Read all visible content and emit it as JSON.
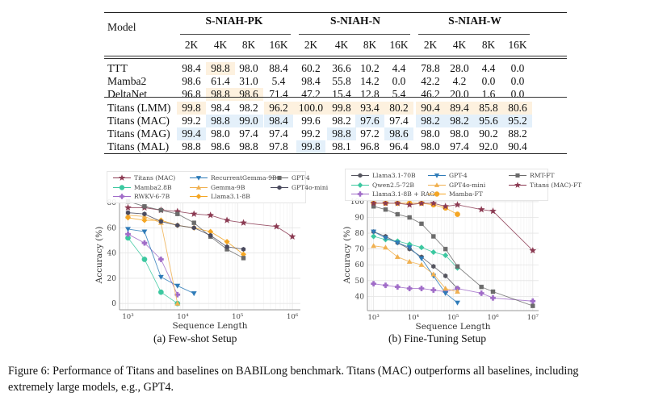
{
  "table": {
    "model_header": "Model",
    "groups": [
      "S-NIAH-PK",
      "S-NIAH-N",
      "S-NIAH-W"
    ],
    "subheaders": [
      "2K",
      "4K",
      "8K",
      "16K",
      "2K",
      "4K",
      "8K",
      "16K",
      "2K",
      "4K",
      "8K",
      "16K"
    ],
    "highlight_colors": {
      "orange": "#fdf1df",
      "blue": "#e4f0fa"
    },
    "rows": [
      {
        "model": "TTT",
        "values": [
          "98.4",
          "98.8",
          "98.0",
          "88.4",
          "60.2",
          "36.6",
          "10.2",
          "4.4",
          "78.8",
          "28.0",
          "4.4",
          "0.0"
        ],
        "highlight": [
          "",
          "o",
          "",
          "",
          "",
          "",
          "",
          "",
          "",
          "",
          "",
          ""
        ]
      },
      {
        "model": "Mamba2",
        "values": [
          "98.6",
          "61.4",
          "31.0",
          "5.4",
          "98.4",
          "55.8",
          "14.2",
          "0.0",
          "42.2",
          "4.2",
          "0.0",
          "0.0"
        ],
        "highlight": [
          "",
          "",
          "",
          "",
          "",
          "",
          "",
          "",
          "",
          "",
          "",
          ""
        ]
      },
      {
        "model": "DeltaNet",
        "values": [
          "96.8",
          "98.8",
          "98.6",
          "71.4",
          "47.2",
          "15.4",
          "12.8",
          "5.4",
          "46.2",
          "20.0",
          "1.6",
          "0.0"
        ],
        "highlight": [
          "",
          "o",
          "o",
          "",
          "",
          "",
          "",
          "",
          "",
          "",
          "",
          ""
        ]
      },
      {
        "model": "Titans (LMM)",
        "values": [
          "99.8",
          "98.4",
          "98.2",
          "96.2",
          "100.0",
          "99.8",
          "93.4",
          "80.2",
          "90.4",
          "89.4",
          "85.8",
          "80.6"
        ],
        "highlight": [
          "o",
          "",
          "",
          "o",
          "o",
          "o",
          "o",
          "o",
          "o",
          "o",
          "o",
          "o"
        ]
      },
      {
        "model": "Titans (MAC)",
        "values": [
          "99.2",
          "98.8",
          "99.0",
          "98.4",
          "99.6",
          "98.2",
          "97.6",
          "97.4",
          "98.2",
          "98.2",
          "95.6",
          "95.2"
        ],
        "highlight": [
          "",
          "b",
          "b",
          "b",
          "",
          "",
          "b",
          "",
          "b",
          "b",
          "b",
          "b"
        ]
      },
      {
        "model": "Titans (MAG)",
        "values": [
          "99.4",
          "98.0",
          "97.4",
          "97.4",
          "99.2",
          "98.8",
          "97.2",
          "98.6",
          "98.0",
          "98.0",
          "90.2",
          "88.2"
        ],
        "highlight": [
          "b",
          "",
          "",
          "",
          "",
          "b",
          "",
          "b",
          "",
          "",
          "",
          ""
        ]
      },
      {
        "model": "Titans (MAL)",
        "values": [
          "98.8",
          "98.6",
          "98.8",
          "97.8",
          "99.8",
          "98.1",
          "96.8",
          "96.4",
          "98.0",
          "97.4",
          "92.0",
          "90.4"
        ],
        "highlight": [
          "",
          "",
          "",
          "",
          "b",
          "",
          "",
          "",
          "",
          "",
          "",
          ""
        ]
      }
    ]
  },
  "subcaptions": {
    "a": "(a) Few-shot Setup",
    "b": "(b) Fine-Tuning Setup"
  },
  "caption": {
    "line1": "Figure 6: Performance of Titans and baselines on BABILong benchmark. Titans (MAC) outperforms all baselines, including",
    "line2": "extremely large models, e.g., GPT4."
  },
  "chart_data": [
    {
      "type": "line",
      "title": "(a) Few-shot Setup",
      "xlabel": "Sequence Length",
      "ylabel": "Accuracy (%)",
      "xscale": "log",
      "xlim": [
        700,
        1400000
      ],
      "ylim": [
        -5,
        82
      ],
      "xticks": [
        {
          "value": 1000,
          "label": "10³"
        },
        {
          "value": 10000,
          "label": "10⁴"
        },
        {
          "value": 100000,
          "label": "10⁵"
        },
        {
          "value": 1000000,
          "label": "10⁶"
        }
      ],
      "yticks": [
        0,
        20,
        40,
        60,
        80
      ],
      "grid": true,
      "legend_position": "top",
      "series": [
        {
          "name": "Titans (MAC)",
          "color": "#8b3a52",
          "marker": "star",
          "x": [
            1000,
            2000,
            4000,
            8000,
            16000,
            32000,
            64000,
            128000,
            512000,
            1000000
          ],
          "y": [
            76,
            76,
            74,
            73,
            71,
            70,
            66,
            64,
            61,
            53
          ]
        },
        {
          "name": "Mamba2.8B",
          "color": "#3cc8a0",
          "marker": "circle",
          "x": [
            1000,
            2000,
            4000,
            8000
          ],
          "y": [
            52,
            35,
            9,
            0
          ]
        },
        {
          "name": "RWKV-6-7B",
          "color": "#a06cc8",
          "marker": "plus",
          "x": [
            1000,
            2000,
            4000,
            8000
          ],
          "y": [
            55,
            48,
            35,
            7
          ]
        },
        {
          "name": "RecurrentGemma-9B",
          "color": "#2e7bb8",
          "marker": "triangle-down",
          "x": [
            1000,
            2000,
            4000,
            8000,
            16000
          ],
          "y": [
            59,
            57,
            21,
            14,
            8
          ]
        },
        {
          "name": "Gemma-9B",
          "color": "#f0b050",
          "marker": "triangle-up",
          "x": [
            1000,
            2000,
            4000,
            8000
          ],
          "y": [
            70,
            69,
            64,
            0
          ]
        },
        {
          "name": "Llama3.1-8B",
          "color": "#f5a623",
          "marker": "diamond",
          "x": [
            1000,
            2000,
            4000,
            8000,
            16000,
            32000,
            64000,
            128000
          ],
          "y": [
            68,
            66,
            66,
            62,
            60,
            57,
            49,
            39
          ]
        },
        {
          "name": "GPT-4",
          "color": "#6b6b6b",
          "marker": "square",
          "x": [
            1000,
            2000,
            4000,
            8000,
            16000,
            32000,
            64000,
            128000
          ],
          "y": [
            81,
            77,
            74,
            71,
            64,
            53,
            43,
            36
          ]
        },
        {
          "name": "GPT4o-mini",
          "color": "#4a4a5e",
          "marker": "hexagon",
          "x": [
            1000,
            2000,
            4000,
            8000,
            16000,
            32000,
            64000,
            128000
          ],
          "y": [
            72,
            71,
            65,
            62,
            60,
            54,
            45,
            43
          ]
        }
      ]
    },
    {
      "type": "line",
      "title": "(b) Fine-Tuning Setup",
      "xlabel": "Sequence Length",
      "ylabel": "Accuracy (%)",
      "xscale": "log",
      "xlim": [
        700,
        14000000
      ],
      "ylim": [
        31,
        101.5
      ],
      "xticks": [
        {
          "value": 1000,
          "label": "10³"
        },
        {
          "value": 10000,
          "label": "10⁴"
        },
        {
          "value": 100000,
          "label": "10⁵"
        },
        {
          "value": 1000000,
          "label": "10⁶"
        },
        {
          "value": 10000000,
          "label": "10⁷"
        }
      ],
      "yticks": [
        40,
        50,
        60,
        70,
        80,
        90,
        100
      ],
      "grid": true,
      "legend_position": "top",
      "series": [
        {
          "name": "Llama3.1-70B",
          "color": "#55555f",
          "marker": "hexagon",
          "x": [
            1000,
            2000,
            4000,
            8000,
            16000,
            32000,
            64000,
            128000
          ],
          "y": [
            81,
            78,
            74,
            70,
            65,
            59,
            53,
            45
          ]
        },
        {
          "name": "Qwen2.5-72B",
          "color": "#3cc8a0",
          "marker": "diamond",
          "x": [
            1000,
            2000,
            4000,
            8000,
            16000,
            32000,
            64000,
            128000
          ],
          "y": [
            78,
            76,
            75,
            73,
            71,
            68,
            66,
            58
          ]
        },
        {
          "name": "Llama3.1-8B + RAG",
          "color": "#a06cc8",
          "marker": "plus",
          "x": [
            1000,
            2000,
            4000,
            8000,
            16000,
            32000,
            64000,
            128000,
            512000,
            1000000,
            10000000
          ],
          "y": [
            48,
            47,
            46,
            45,
            45,
            44,
            43,
            45,
            42,
            39,
            37
          ]
        },
        {
          "name": "GPT-4",
          "color": "#2e7bb8",
          "marker": "triangle-down",
          "x": [
            1000,
            2000,
            4000,
            8000,
            16000,
            32000,
            64000,
            128000
          ],
          "y": [
            81,
            77,
            74,
            71,
            64,
            53,
            42,
            36
          ]
        },
        {
          "name": "GPT4o-mini",
          "color": "#f0b050",
          "marker": "triangle-up",
          "x": [
            1000,
            2000,
            4000,
            8000,
            16000,
            32000,
            64000,
            128000
          ],
          "y": [
            72,
            71,
            65,
            62,
            60,
            54,
            45,
            43
          ]
        },
        {
          "name": "Mamba-FT",
          "color": "#f5a623",
          "marker": "circle",
          "x": [
            1000,
            2000,
            4000,
            8000,
            16000,
            32000,
            64000,
            128000
          ],
          "y": [
            99,
            99,
            99,
            99,
            99,
            98,
            96,
            92
          ]
        },
        {
          "name": "RMT-FT",
          "color": "#6b6b6b",
          "marker": "square",
          "x": [
            1000,
            2000,
            4000,
            8000,
            16000,
            32000,
            64000,
            128000,
            512000,
            1000000,
            10000000
          ],
          "y": [
            97,
            95,
            92,
            90,
            86,
            78,
            70,
            59,
            46,
            43,
            34
          ]
        },
        {
          "name": "Titans (MAC)-FT",
          "color": "#8b3a52",
          "marker": "star",
          "x": [
            1000,
            2000,
            4000,
            8000,
            16000,
            32000,
            64000,
            128000,
            512000,
            1000000,
            10000000
          ],
          "y": [
            99,
            99,
            99,
            98,
            99,
            99,
            97,
            98,
            95,
            94,
            69
          ]
        }
      ]
    }
  ]
}
